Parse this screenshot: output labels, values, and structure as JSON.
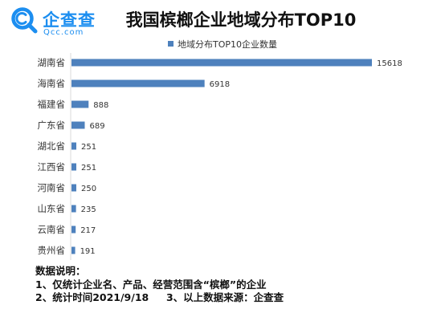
{
  "logo": {
    "name": "企查查",
    "subtitle": "Qcc.com",
    "color": "#1c8ef0"
  },
  "title": "我国槟榔企业地域分布TOP10",
  "chart_data": {
    "type": "bar",
    "orientation": "horizontal",
    "title": "我国槟榔企业地域分布TOP10",
    "categories": [
      "湖南省",
      "海南省",
      "福建省",
      "广东省",
      "湖北省",
      "江西省",
      "河南省",
      "山东省",
      "云南省",
      "贵州省"
    ],
    "series": [
      {
        "name": "地域分布TOP10企业数量",
        "color": "#4e81bd",
        "values": [
          15618,
          6918,
          888,
          689,
          251,
          251,
          250,
          235,
          217,
          191
        ]
      }
    ],
    "xlim": [
      0,
      15618
    ],
    "grid": false,
    "data_labels": true,
    "legend_position": "top"
  },
  "notes": {
    "heading": "数据说明：",
    "line1": "1、仅统计企业名、产品、经营范围含“槟榔”的企业",
    "line2": "2、统计时间2021/9/18     3、以上数据来源：企查查"
  }
}
